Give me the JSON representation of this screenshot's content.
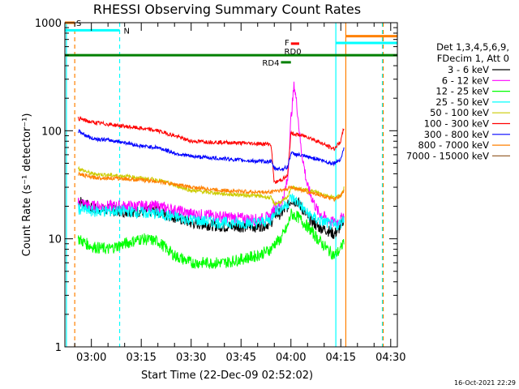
{
  "chart_data": {
    "type": "line",
    "title": "RHESSI Observing Summary Count Rates",
    "xlabel": "Start Time (22-Dec-09 02:52:02)",
    "ylabel": "Count Rate (s⁻¹ detector⁻¹)",
    "y_scale": "log",
    "ylim": [
      1,
      1000
    ],
    "y_ticks": [
      {
        "value": 1,
        "label": "1"
      },
      {
        "value": 10,
        "label": "10"
      },
      {
        "value": 100,
        "label": "100"
      },
      {
        "value": 1000,
        "label": "1000"
      }
    ],
    "x_range": [
      "02:52:02",
      "04:32:00"
    ],
    "x_ticks": [
      "03:00",
      "03:15",
      "03:30",
      "03:45",
      "04:00",
      "04:15",
      "04:30"
    ],
    "legend_header": [
      "Det 1,3,4,5,6,9,",
      "FDecim 1, Att 0"
    ],
    "legend_position": "right",
    "series": [
      {
        "name": "3 - 6 keV",
        "color": "#000000",
        "points": [
          [
            "02:56",
            23
          ],
          [
            "03:00",
            19
          ],
          [
            "03:10",
            18
          ],
          [
            "03:20",
            18
          ],
          [
            "03:30",
            14
          ],
          [
            "03:40",
            13
          ],
          [
            "03:50",
            13
          ],
          [
            "03:54",
            14
          ],
          [
            "03:55",
            17
          ],
          [
            "03:57",
            17
          ],
          [
            "03:59",
            20
          ],
          [
            "04:00",
            23
          ],
          [
            "04:02",
            22
          ],
          [
            "04:05",
            16
          ],
          [
            "04:08",
            13
          ],
          [
            "04:11",
            12
          ],
          [
            "04:13",
            11
          ],
          [
            "04:15",
            13
          ],
          [
            "04:16",
            16
          ]
        ]
      },
      {
        "name": "6 - 12 keV",
        "color": "#ff00ff",
        "points": [
          [
            "02:56",
            22
          ],
          [
            "03:00",
            20
          ],
          [
            "03:10",
            20
          ],
          [
            "03:20",
            20
          ],
          [
            "03:30",
            17
          ],
          [
            "03:40",
            16
          ],
          [
            "03:50",
            15
          ],
          [
            "03:54",
            16
          ],
          [
            "03:55",
            20
          ],
          [
            "03:57",
            20
          ],
          [
            "03:59",
            35
          ],
          [
            "04:00",
            130
          ],
          [
            "04:01",
            270
          ],
          [
            "04:02",
            150
          ],
          [
            "04:03",
            70
          ],
          [
            "04:05",
            30
          ],
          [
            "04:08",
            18
          ],
          [
            "04:11",
            15
          ],
          [
            "04:13",
            14
          ],
          [
            "04:15",
            15
          ],
          [
            "04:16",
            17
          ]
        ]
      },
      {
        "name": "12 - 25 keV",
        "color": "#00ff00",
        "points": [
          [
            "02:56",
            10
          ],
          [
            "03:00",
            8.5
          ],
          [
            "03:05",
            8
          ],
          [
            "03:10",
            9
          ],
          [
            "03:15",
            10
          ],
          [
            "03:20",
            9.5
          ],
          [
            "03:25",
            7
          ],
          [
            "03:30",
            6
          ],
          [
            "03:40",
            6
          ],
          [
            "03:50",
            7
          ],
          [
            "03:54",
            8
          ],
          [
            "03:55",
            9
          ],
          [
            "03:57",
            10
          ],
          [
            "03:59",
            13
          ],
          [
            "04:00",
            17
          ],
          [
            "04:02",
            16
          ],
          [
            "04:05",
            13
          ],
          [
            "04:08",
            10
          ],
          [
            "04:11",
            8
          ],
          [
            "04:13",
            7
          ],
          [
            "04:15",
            8
          ],
          [
            "04:16",
            10
          ]
        ]
      },
      {
        "name": "25 - 50 keV",
        "color": "#00ffff",
        "points": [
          [
            "02:56",
            19
          ],
          [
            "03:00",
            18
          ],
          [
            "03:10",
            18
          ],
          [
            "03:20",
            17
          ],
          [
            "03:30",
            15
          ],
          [
            "03:40",
            14
          ],
          [
            "03:50",
            14
          ],
          [
            "03:54",
            15
          ],
          [
            "03:55",
            18
          ],
          [
            "03:57",
            19
          ],
          [
            "03:59",
            21
          ],
          [
            "04:00",
            24
          ],
          [
            "04:02",
            22
          ],
          [
            "04:05",
            17
          ],
          [
            "04:08",
            15
          ],
          [
            "04:11",
            14
          ],
          [
            "04:13",
            13
          ],
          [
            "04:15",
            14
          ],
          [
            "04:16",
            16
          ]
        ]
      },
      {
        "name": "50 - 100 keV",
        "color": "#cccc00",
        "points": [
          [
            "02:56",
            45
          ],
          [
            "03:00",
            40
          ],
          [
            "03:10",
            38
          ],
          [
            "03:20",
            35
          ],
          [
            "03:30",
            28
          ],
          [
            "03:40",
            26
          ],
          [
            "03:50",
            25
          ],
          [
            "03:54",
            24
          ],
          [
            "03:55",
            21
          ],
          [
            "03:57",
            22
          ],
          [
            "03:59",
            24
          ],
          [
            "04:00",
            30
          ],
          [
            "04:02",
            29
          ],
          [
            "04:05",
            28
          ],
          [
            "04:08",
            27
          ],
          [
            "04:11",
            25
          ],
          [
            "04:13",
            24
          ],
          [
            "04:15",
            25
          ],
          [
            "04:16",
            30
          ]
        ]
      },
      {
        "name": "100 - 300 keV",
        "color": "#ff0000",
        "points": [
          [
            "02:56",
            130
          ],
          [
            "03:00",
            120
          ],
          [
            "03:05",
            115
          ],
          [
            "03:10",
            110
          ],
          [
            "03:15",
            105
          ],
          [
            "03:20",
            100
          ],
          [
            "03:25",
            90
          ],
          [
            "03:30",
            80
          ],
          [
            "03:40",
            78
          ],
          [
            "03:50",
            76
          ],
          [
            "03:54",
            75
          ],
          [
            "03:55",
            33
          ],
          [
            "03:57",
            35
          ],
          [
            "03:59",
            38
          ],
          [
            "04:00",
            95
          ],
          [
            "04:02",
            92
          ],
          [
            "04:05",
            88
          ],
          [
            "04:08",
            80
          ],
          [
            "04:11",
            72
          ],
          [
            "04:13",
            68
          ],
          [
            "04:15",
            80
          ],
          [
            "04:16",
            110
          ]
        ]
      },
      {
        "name": "300 - 800 keV",
        "color": "#0000ff",
        "points": [
          [
            "02:56",
            100
          ],
          [
            "03:00",
            85
          ],
          [
            "03:05",
            82
          ],
          [
            "03:10",
            78
          ],
          [
            "03:15",
            72
          ],
          [
            "03:20",
            70
          ],
          [
            "03:25",
            62
          ],
          [
            "03:30",
            58
          ],
          [
            "03:40",
            55
          ],
          [
            "03:50",
            52
          ],
          [
            "03:54",
            52
          ],
          [
            "03:55",
            45
          ],
          [
            "03:57",
            44
          ],
          [
            "03:59",
            46
          ],
          [
            "04:00",
            62
          ],
          [
            "04:02",
            60
          ],
          [
            "04:05",
            57
          ],
          [
            "04:08",
            55
          ],
          [
            "04:11",
            51
          ],
          [
            "04:13",
            50
          ],
          [
            "04:15",
            55
          ],
          [
            "04:16",
            70
          ]
        ]
      },
      {
        "name": "800 - 7000 keV",
        "color": "#ff8000",
        "points": [
          [
            "02:56",
            40
          ],
          [
            "03:00",
            37
          ],
          [
            "03:10",
            36
          ],
          [
            "03:20",
            34
          ],
          [
            "03:30",
            30
          ],
          [
            "03:40",
            28
          ],
          [
            "03:50",
            27
          ],
          [
            "03:54",
            27
          ],
          [
            "03:55",
            28
          ],
          [
            "03:57",
            28
          ],
          [
            "03:59",
            29
          ],
          [
            "04:00",
            30
          ],
          [
            "04:02",
            29
          ],
          [
            "04:05",
            27
          ],
          [
            "04:08",
            26
          ],
          [
            "04:11",
            24
          ],
          [
            "04:13",
            23
          ],
          [
            "04:15",
            25
          ],
          [
            "04:16",
            28
          ]
        ]
      },
      {
        "name": "7000 - 15000 keV",
        "color": "#996633",
        "points": []
      }
    ],
    "state_bars": [
      {
        "label": "S",
        "color": "#ff8000",
        "start": "02:52:02",
        "end": "02:55:00",
        "y": 1000
      },
      {
        "label": "N",
        "color": "#00ffff",
        "start": "02:52:02",
        "end": "03:08:30",
        "y": 850
      },
      {
        "label": "F",
        "color": "#ff0000",
        "start": "04:00:00",
        "end": "04:02:30",
        "y": 640
      },
      {
        "label": "RD0",
        "color": "#008000",
        "start": "02:52:02",
        "end": "04:32:00",
        "y": 500
      },
      {
        "label": "RD4",
        "color": "#008000",
        "start": "03:57:00",
        "end": "04:00:00",
        "y": 430
      },
      {
        "label": "",
        "color": "#ff8000",
        "start": "04:16:30",
        "end": "04:32:00",
        "y": 750
      },
      {
        "label": "",
        "color": "#00ffff",
        "start": "04:13:30",
        "end": "04:32:00",
        "y": 650
      }
    ],
    "markers": [
      {
        "time": "02:52:30",
        "color": "#00ffff",
        "style": "solid"
      },
      {
        "time": "02:55:00",
        "color": "#ff8000",
        "style": "dashed"
      },
      {
        "time": "03:08:30",
        "color": "#00ffff",
        "style": "dashed"
      },
      {
        "time": "04:13:30",
        "color": "#00ffff",
        "style": "solid"
      },
      {
        "time": "04:16:30",
        "color": "#ff8000",
        "style": "solid"
      },
      {
        "time": "04:27:30",
        "color": "#00ffff",
        "style": "dashed"
      },
      {
        "time": "04:27:45",
        "color": "#ff8000",
        "style": "dashed"
      }
    ]
  },
  "footer": {
    "timestamp": "16-Oct-2021 22:29"
  }
}
